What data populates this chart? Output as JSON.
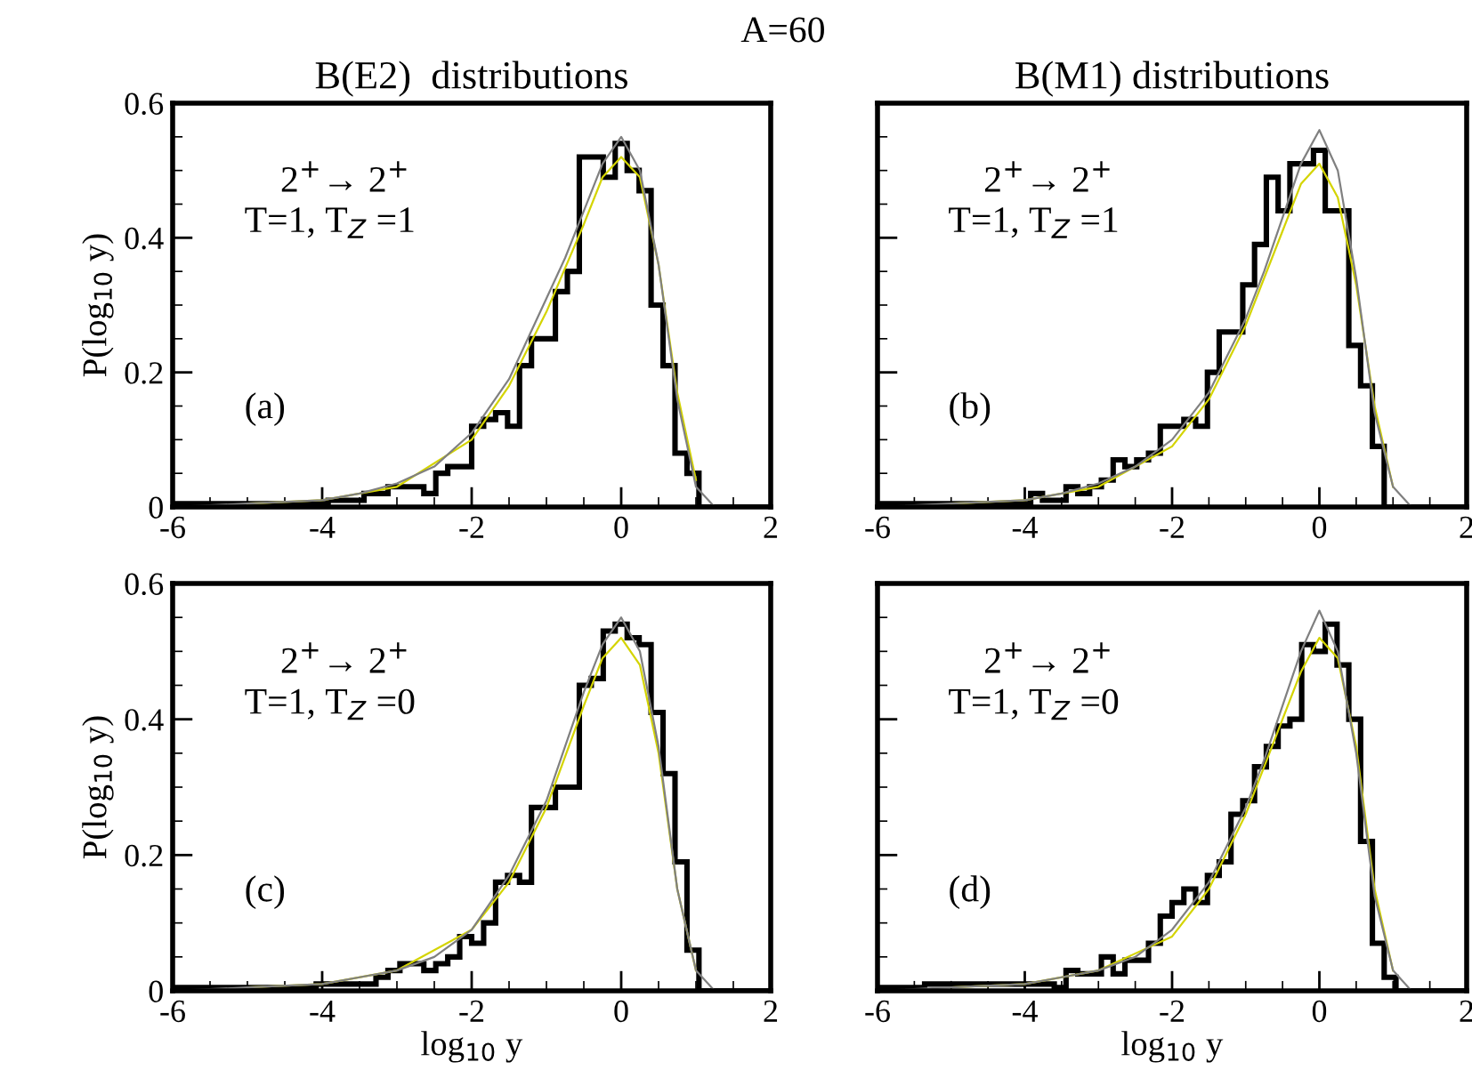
{
  "chart_data": [
    {
      "type": "histogram",
      "title": "B(E2)  distributions",
      "subtitle": "A=60",
      "ylabel": "P(log$_{10}$ y)",
      "annotations": [
        "2$^{+}$→ 2$^{+}$",
        "T=1, T$_{Z}$ =1",
        "(a)"
      ],
      "bins": [
        -6,
        -5.84,
        -5.68,
        -5.52,
        -5.36,
        -5.2,
        -5.04,
        -4.88,
        -4.72,
        -4.56,
        -4.4,
        -4.24,
        -4.08,
        -3.92,
        -3.76,
        -3.6,
        -3.44,
        -3.28,
        -3.12,
        -2.96,
        -2.8,
        -2.64,
        -2.48,
        -2.32,
        -2.16,
        -2,
        -1.84,
        -1.68,
        -1.52,
        -1.36,
        -1.2,
        -1.04,
        -0.88,
        -0.72,
        -0.56,
        -0.4,
        -0.24,
        -0.08,
        0.08,
        0.24,
        0.4,
        0.56,
        0.72,
        0.88,
        1.04,
        1.2,
        1.36,
        1.52,
        1.68,
        1.84,
        2
      ],
      "series": [
        {
          "type": "histogram",
          "color": "#000000",
          "values": [
            0.005,
            0.005,
            0.005,
            0.005,
            0.005,
            0.005,
            0.005,
            0.005,
            0.005,
            0.005,
            0.005,
            0.005,
            0.005,
            0.01,
            0.01,
            0.01,
            0.02,
            0.02,
            0.03,
            0.03,
            0.03,
            0.02,
            0.05,
            0.06,
            0.06,
            0.12,
            0.13,
            0.14,
            0.12,
            0.21,
            0.25,
            0.25,
            0.32,
            0.35,
            0.52,
            0.52,
            0.49,
            0.54,
            0.5,
            0.47,
            0.3,
            0.21,
            0.08,
            0.05,
            0,
            0,
            0,
            0,
            0,
            0
          ]
        },
        {
          "type": "line",
          "color": "#d4d400",
          "x": [
            -5,
            -4,
            -3,
            -2,
            -1.5,
            -1,
            -0.5,
            -0.25,
            0,
            0.25,
            0.5,
            0.75,
            1
          ],
          "values": [
            0.005,
            0.01,
            0.03,
            0.1,
            0.18,
            0.29,
            0.42,
            0.49,
            0.52,
            0.49,
            0.36,
            0.17,
            0.04
          ]
        },
        {
          "type": "line",
          "color": "#808080",
          "x": [
            -6,
            -5,
            -4,
            -3.5,
            -3,
            -2.5,
            -2,
            -1.5,
            -1,
            -0.75,
            -0.5,
            -0.25,
            0,
            0.25,
            0.5,
            0.75,
            1,
            1.25,
            1.5,
            2
          ],
          "values": [
            0,
            0.005,
            0.01,
            0.02,
            0.035,
            0.06,
            0.11,
            0.19,
            0.31,
            0.37,
            0.44,
            0.51,
            0.55,
            0.5,
            0.36,
            0.16,
            0.03,
            0,
            0,
            0
          ]
        }
      ],
      "xlim": [
        -6,
        2
      ],
      "ylim": [
        0,
        0.6
      ],
      "xticks": [
        -6,
        -4,
        -2,
        0,
        2
      ],
      "yticks": [
        0,
        0.2,
        0.4,
        0.6
      ]
    },
    {
      "type": "histogram",
      "title": "B(M1) distributions",
      "annotations": [
        "2$^{+}$→ 2$^{+}$",
        "T=1, T$_{Z}$ =1",
        "(b)"
      ],
      "tick_labels": "x",
      "bins": [
        -6,
        -5.84,
        -5.68,
        -5.52,
        -5.36,
        -5.2,
        -5.04,
        -4.88,
        -4.72,
        -4.56,
        -4.4,
        -4.24,
        -4.08,
        -3.92,
        -3.76,
        -3.6,
        -3.44,
        -3.28,
        -3.12,
        -2.96,
        -2.8,
        -2.64,
        -2.48,
        -2.32,
        -2.16,
        -2,
        -1.84,
        -1.68,
        -1.52,
        -1.36,
        -1.2,
        -1.04,
        -0.88,
        -0.72,
        -0.56,
        -0.4,
        -0.24,
        -0.08,
        0.08,
        0.24,
        0.4,
        0.56,
        0.72,
        0.88,
        1.04,
        1.2,
        1.36,
        1.52,
        1.68,
        1.84,
        2
      ],
      "series": [
        {
          "type": "histogram",
          "color": "#000000",
          "values": [
            0.005,
            0.005,
            0.005,
            0.005,
            0.005,
            0.005,
            0.005,
            0.005,
            0.005,
            0.005,
            0.005,
            0.005,
            0.005,
            0.02,
            0.01,
            0.01,
            0.03,
            0.02,
            0.03,
            0.04,
            0.07,
            0.06,
            0.07,
            0.08,
            0.12,
            0.12,
            0.13,
            0.12,
            0.2,
            0.26,
            0.26,
            0.33,
            0.39,
            0.49,
            0.44,
            0.51,
            0.51,
            0.53,
            0.44,
            0.44,
            0.24,
            0.18,
            0.09,
            0,
            0,
            0,
            0,
            0,
            0,
            0
          ]
        },
        {
          "type": "line",
          "color": "#d4d400",
          "x": [
            -5,
            -4,
            -3,
            -2,
            -1.5,
            -1,
            -0.5,
            -0.25,
            0,
            0.25,
            0.5,
            0.75,
            1
          ],
          "values": [
            0.005,
            0.01,
            0.03,
            0.09,
            0.16,
            0.27,
            0.41,
            0.48,
            0.51,
            0.46,
            0.33,
            0.15,
            0.03
          ]
        },
        {
          "type": "line",
          "color": "#808080",
          "x": [
            -6,
            -5,
            -4,
            -3.5,
            -3,
            -2.5,
            -2,
            -1.5,
            -1,
            -0.75,
            -0.5,
            -0.25,
            0,
            0.25,
            0.5,
            0.75,
            1,
            1.25,
            1.5,
            2
          ],
          "values": [
            0,
            0.005,
            0.01,
            0.02,
            0.035,
            0.06,
            0.1,
            0.17,
            0.28,
            0.35,
            0.43,
            0.51,
            0.56,
            0.5,
            0.34,
            0.14,
            0.03,
            0,
            0,
            0
          ]
        }
      ],
      "xlim": [
        -6,
        2
      ],
      "ylim": [
        0,
        0.6
      ],
      "xticks": [
        -6,
        -4,
        -2,
        0,
        2
      ],
      "yticks": [
        0,
        0.2,
        0.4,
        0.6
      ]
    },
    {
      "type": "histogram",
      "xlabel": "log$_{10}$ y",
      "ylabel": "P(log$_{10}$ y)",
      "annotations": [
        "2$^{+}$→ 2$^{+}$",
        "T=1, T$_{Z}$ =0",
        "(c)"
      ],
      "bins": [
        -6,
        -5.84,
        -5.68,
        -5.52,
        -5.36,
        -5.2,
        -5.04,
        -4.88,
        -4.72,
        -4.56,
        -4.4,
        -4.24,
        -4.08,
        -3.92,
        -3.76,
        -3.6,
        -3.44,
        -3.28,
        -3.12,
        -2.96,
        -2.8,
        -2.64,
        -2.48,
        -2.32,
        -2.16,
        -2,
        -1.84,
        -1.68,
        -1.52,
        -1.36,
        -1.2,
        -1.04,
        -0.88,
        -0.72,
        -0.56,
        -0.4,
        -0.24,
        -0.08,
        0.08,
        0.24,
        0.4,
        0.56,
        0.72,
        0.88,
        1.04,
        1.2,
        1.36,
        1.52,
        1.68,
        1.84,
        2
      ],
      "series": [
        {
          "type": "histogram",
          "color": "#000000",
          "values": [
            0.005,
            0.005,
            0.005,
            0.005,
            0.005,
            0.005,
            0.005,
            0.005,
            0.005,
            0.005,
            0.005,
            0.005,
            0.01,
            0.01,
            0.01,
            0.01,
            0.01,
            0.02,
            0.03,
            0.04,
            0.04,
            0.03,
            0.04,
            0.05,
            0.08,
            0.07,
            0.1,
            0.16,
            0.17,
            0.16,
            0.27,
            0.27,
            0.3,
            0.3,
            0.45,
            0.46,
            0.53,
            0.54,
            0.52,
            0.51,
            0.41,
            0.32,
            0.19,
            0.06,
            0,
            0,
            0,
            0,
            0,
            0
          ]
        },
        {
          "type": "line",
          "color": "#d4d400",
          "x": [
            -5,
            -4,
            -3,
            -2,
            -1.5,
            -1,
            -0.5,
            -0.25,
            0,
            0.25,
            0.5,
            0.75,
            1
          ],
          "values": [
            0.005,
            0.01,
            0.03,
            0.09,
            0.16,
            0.27,
            0.42,
            0.49,
            0.52,
            0.48,
            0.35,
            0.15,
            0.03
          ]
        },
        {
          "type": "line",
          "color": "#808080",
          "x": [
            -6,
            -5,
            -4,
            -3.5,
            -3,
            -2.5,
            -2,
            -1.5,
            -1,
            -0.75,
            -0.5,
            -0.25,
            0,
            0.25,
            0.5,
            0.75,
            1,
            1.25,
            1.5,
            2
          ],
          "values": [
            0,
            0.005,
            0.01,
            0.02,
            0.03,
            0.05,
            0.09,
            0.17,
            0.28,
            0.36,
            0.44,
            0.51,
            0.55,
            0.5,
            0.36,
            0.15,
            0.03,
            0,
            0,
            0
          ]
        }
      ],
      "xlim": [
        -6,
        2
      ],
      "ylim": [
        0,
        0.6
      ],
      "xticks": [
        -6,
        -4,
        -2,
        0,
        2
      ],
      "yticks": [
        0,
        0.2,
        0.4,
        0.6
      ]
    },
    {
      "type": "histogram",
      "xlabel": "log$_{10}$ y",
      "annotations": [
        "2$^{+}$→ 2$^{+}$",
        "T=1, T$_{Z}$ =0",
        "(d)"
      ],
      "tick_labels": "x",
      "bins": [
        -6,
        -5.84,
        -5.68,
        -5.52,
        -5.36,
        -5.2,
        -5.04,
        -4.88,
        -4.72,
        -4.56,
        -4.4,
        -4.24,
        -4.08,
        -3.92,
        -3.76,
        -3.6,
        -3.44,
        -3.28,
        -3.12,
        -2.96,
        -2.8,
        -2.64,
        -2.48,
        -2.32,
        -2.16,
        -2,
        -1.84,
        -1.68,
        -1.52,
        -1.36,
        -1.2,
        -1.04,
        -0.88,
        -0.72,
        -0.56,
        -0.4,
        -0.24,
        -0.08,
        0.08,
        0.24,
        0.4,
        0.56,
        0.72,
        0.88,
        1.04,
        1.2,
        1.36,
        1.52,
        1.68,
        1.84,
        2
      ],
      "series": [
        {
          "type": "histogram",
          "color": "#000000",
          "values": [
            0.005,
            0.005,
            0.005,
            0.005,
            0.01,
            0.01,
            0.01,
            0.01,
            0.01,
            0.01,
            0.01,
            0.01,
            0.01,
            0.01,
            0.01,
            0.005,
            0.03,
            0.025,
            0.025,
            0.05,
            0.025,
            0.045,
            0.045,
            0.07,
            0.11,
            0.13,
            0.15,
            0.13,
            0.17,
            0.19,
            0.26,
            0.28,
            0.33,
            0.36,
            0.39,
            0.4,
            0.51,
            0.5,
            0.54,
            0.48,
            0.4,
            0.22,
            0.07,
            0.02,
            0,
            0,
            0,
            0,
            0,
            0
          ]
        },
        {
          "type": "line",
          "color": "#d4d400",
          "x": [
            -5,
            -4,
            -3,
            -2,
            -1.5,
            -1,
            -0.5,
            -0.25,
            0,
            0.25,
            0.5,
            0.75,
            1
          ],
          "values": [
            0.005,
            0.01,
            0.03,
            0.08,
            0.15,
            0.26,
            0.4,
            0.47,
            0.52,
            0.49,
            0.36,
            0.15,
            0.03
          ]
        },
        {
          "type": "line",
          "color": "#808080",
          "x": [
            -6,
            -5,
            -4,
            -3.5,
            -3,
            -2.5,
            -2,
            -1.5,
            -1,
            -0.75,
            -0.5,
            -0.25,
            0,
            0.25,
            0.5,
            0.75,
            1,
            1.25,
            1.5,
            2
          ],
          "values": [
            0,
            0.005,
            0.01,
            0.02,
            0.03,
            0.05,
            0.09,
            0.16,
            0.27,
            0.34,
            0.42,
            0.5,
            0.56,
            0.5,
            0.35,
            0.14,
            0.03,
            0,
            0,
            0
          ]
        }
      ],
      "xlim": [
        -6,
        2
      ],
      "ylim": [
        0,
        0.6
      ],
      "xticks": [
        -6,
        -4,
        -2,
        0,
        2
      ],
      "yticks": [
        0,
        0.2,
        0.4,
        0.6
      ]
    }
  ]
}
